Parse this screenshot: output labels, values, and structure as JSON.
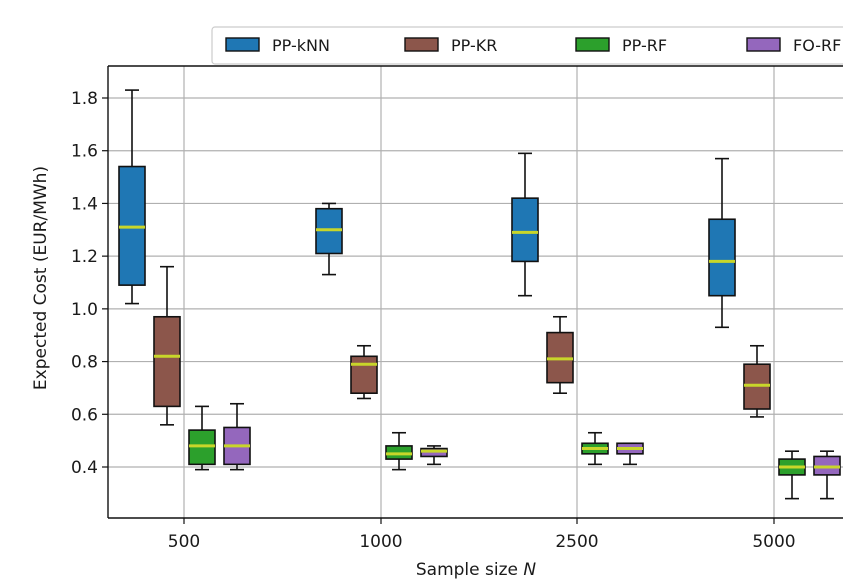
{
  "chart_data": {
    "type": "box",
    "xlabel": "Sample size",
    "xlabel_var": "N",
    "ylabel": "Expected Cost (EUR/MWh)",
    "categories": [
      "500",
      "1000",
      "2500",
      "5000"
    ],
    "ylim": [
      0.2,
      1.9
    ],
    "yticks": [
      "0.4",
      "0.6",
      "0.8",
      "1.0",
      "1.2",
      "1.4",
      "1.6",
      "1.8"
    ],
    "grid": true,
    "legend_position": "top",
    "median_color": "#c8d62a",
    "series": [
      {
        "name": "PP-kNN",
        "color": "#1f77b4",
        "boxes": [
          {
            "whisker_low": 1.02,
            "q1": 1.09,
            "median": 1.31,
            "q3": 1.54,
            "whisker_high": 1.83
          },
          {
            "whisker_low": 1.13,
            "q1": 1.21,
            "median": 1.3,
            "q3": 1.38,
            "whisker_high": 1.4
          },
          {
            "whisker_low": 1.05,
            "q1": 1.18,
            "median": 1.29,
            "q3": 1.42,
            "whisker_high": 1.59
          },
          {
            "whisker_low": 0.93,
            "q1": 1.05,
            "median": 1.18,
            "q3": 1.34,
            "whisker_high": 1.57
          }
        ]
      },
      {
        "name": "PP-KR",
        "color": "#8c564b",
        "boxes": [
          {
            "whisker_low": 0.56,
            "q1": 0.63,
            "median": 0.82,
            "q3": 0.97,
            "whisker_high": 1.16
          },
          {
            "whisker_low": 0.66,
            "q1": 0.68,
            "median": 0.79,
            "q3": 0.82,
            "whisker_high": 0.86
          },
          {
            "whisker_low": 0.68,
            "q1": 0.72,
            "median": 0.81,
            "q3": 0.91,
            "whisker_high": 0.97
          },
          {
            "whisker_low": 0.59,
            "q1": 0.62,
            "median": 0.71,
            "q3": 0.79,
            "whisker_high": 0.86
          }
        ]
      },
      {
        "name": "PP-RF",
        "color": "#2ca02c",
        "boxes": [
          {
            "whisker_low": 0.39,
            "q1": 0.41,
            "median": 0.48,
            "q3": 0.54,
            "whisker_high": 0.63
          },
          {
            "whisker_low": 0.39,
            "q1": 0.43,
            "median": 0.45,
            "q3": 0.48,
            "whisker_high": 0.53
          },
          {
            "whisker_low": 0.41,
            "q1": 0.45,
            "median": 0.47,
            "q3": 0.49,
            "whisker_high": 0.53
          },
          {
            "whisker_low": 0.28,
            "q1": 0.37,
            "median": 0.4,
            "q3": 0.43,
            "whisker_high": 0.46
          }
        ]
      },
      {
        "name": "FO-RF",
        "color": "#9467bd",
        "boxes": [
          {
            "whisker_low": 0.39,
            "q1": 0.41,
            "median": 0.48,
            "q3": 0.55,
            "whisker_high": 0.64
          },
          {
            "whisker_low": 0.41,
            "q1": 0.44,
            "median": 0.46,
            "q3": 0.47,
            "whisker_high": 0.48
          },
          {
            "whisker_low": 0.41,
            "q1": 0.45,
            "median": 0.47,
            "q3": 0.49,
            "whisker_high": 0.49
          },
          {
            "whisker_low": 0.28,
            "q1": 0.37,
            "median": 0.4,
            "q3": 0.44,
            "whisker_high": 0.46
          }
        ]
      }
    ]
  }
}
